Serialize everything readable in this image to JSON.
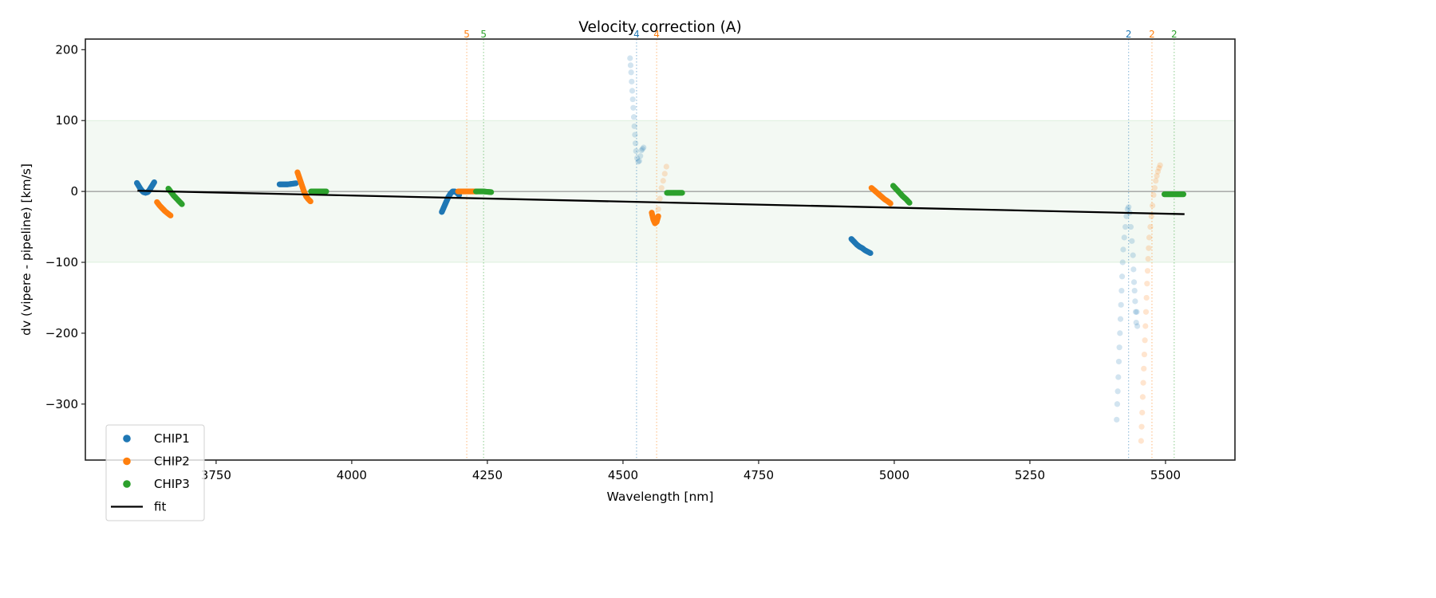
{
  "chart_data": {
    "type": "scatter",
    "title": "Velocity correction (A)",
    "xlabel": "Wavelength [nm]",
    "ylabel": "dv (vipere - pipeline) [km/s]",
    "xlim": [
      3509,
      5628
    ],
    "ylim": [
      -379,
      215
    ],
    "xticks": [
      3750,
      4000,
      4250,
      4500,
      4750,
      5000,
      5250,
      5500
    ],
    "xtick_labels": [
      "3750",
      "4000",
      "4250",
      "4500",
      "4750",
      "5000",
      "5250",
      "5500"
    ],
    "yticks": [
      200,
      100,
      0,
      -100,
      -200,
      -300
    ],
    "ytick_labels": [
      "200",
      "100",
      "0",
      "−100",
      "−200",
      "−300"
    ],
    "grid": false,
    "band": {
      "y_from": -100,
      "y_to": 100,
      "color": "#2ca02c",
      "opacity": 0.06
    },
    "zero_line": {
      "y": 0,
      "color": "#808080"
    },
    "legend": {
      "position": "lower-left",
      "entries": [
        {
          "label": "CHIP1",
          "type": "marker",
          "color": "#1f77b4"
        },
        {
          "label": "CHIP2",
          "type": "marker",
          "color": "#ff7f0e"
        },
        {
          "label": "CHIP3",
          "type": "marker",
          "color": "#2ca02c"
        },
        {
          "label": "fit",
          "type": "line",
          "color": "#000000"
        }
      ]
    },
    "fit": {
      "name": "fit",
      "color": "#000000",
      "x": [
        3605,
        5535
      ],
      "y": [
        1,
        -32
      ]
    },
    "order_markers": [
      {
        "x": 4212,
        "label": "5",
        "color": "#ff7f0e"
      },
      {
        "x": 4243,
        "label": "5",
        "color": "#2ca02c"
      },
      {
        "x": 4525,
        "label": "4",
        "color": "#1f77b4"
      },
      {
        "x": 4562,
        "label": "4",
        "color": "#ff7f0e"
      },
      {
        "x": 5432,
        "label": "2",
        "color": "#1f77b4"
      },
      {
        "x": 5475,
        "label": "2",
        "color": "#ff7f0e"
      },
      {
        "x": 5516,
        "label": "2",
        "color": "#2ca02c"
      }
    ],
    "series": [
      {
        "name": "CHIP1",
        "color": "#1f77b4",
        "segments": [
          {
            "opacity": 1,
            "x": [
              3604,
              3608,
              3612,
              3616,
              3620,
              3624,
              3628,
              3632,
              3636
            ],
            "y": [
              12,
              7,
              2,
              -1,
              -2,
              -1,
              3,
              8,
              13
            ]
          },
          {
            "opacity": 1,
            "x": [
              3867,
              3872,
              3877,
              3882,
              3887,
              3892,
              3897
            ],
            "y": [
              10,
              10,
              10,
              10,
              10.5,
              11,
              11.5
            ]
          },
          {
            "opacity": 1,
            "x": [
              4166,
              4170,
              4174,
              4178,
              4182,
              4186,
              4190,
              4194,
              4198
            ],
            "y": [
              -29,
              -22,
              -15,
              -8,
              -3,
              0,
              0,
              -2,
              -5
            ]
          },
          {
            "opacity": 0.2,
            "x": [
              4513,
              4514,
              4515,
              4516,
              4517,
              4518,
              4519,
              4520,
              4521,
              4522,
              4523,
              4524,
              4526,
              4528,
              4530,
              4532,
              4534,
              4536,
              4538
            ],
            "y": [
              188,
              178,
              168,
              155,
              142,
              130,
              118,
              105,
              92,
              80,
              68,
              57,
              47,
              42,
              43,
              50,
              58,
              60,
              62
            ]
          },
          {
            "opacity": 1,
            "x": [
              4921,
              4926,
              4931,
              4936,
              4941,
              4946,
              4951,
              4956
            ],
            "y": [
              -67,
              -71,
              -75,
              -78,
              -80,
              -83,
              -85,
              -87
            ]
          },
          {
            "opacity": 0.2,
            "x": [
              5410,
              5411,
              5412,
              5413,
              5414,
              5415,
              5416,
              5417,
              5418,
              5419,
              5420,
              5421,
              5422,
              5424,
              5426,
              5428,
              5430,
              5432,
              5434,
              5436,
              5438,
              5440,
              5441,
              5442,
              5443,
              5444,
              5445,
              5446,
              5447,
              5448
            ],
            "y": [
              -322,
              -300,
              -282,
              -262,
              -240,
              -220,
              -200,
              -180,
              -160,
              -140,
              -120,
              -100,
              -82,
              -65,
              -50,
              -35,
              -25,
              -22,
              -30,
              -50,
              -70,
              -90,
              -110,
              -128,
              -140,
              -155,
              -170,
              -185,
              -170,
              -190
            ]
          }
        ]
      },
      {
        "name": "CHIP2",
        "color": "#ff7f0e",
        "segments": [
          {
            "opacity": 1,
            "x": [
              3641,
              3646,
              3651,
              3656,
              3661,
              3666
            ],
            "y": [
              -15,
              -20,
              -24,
              -28,
              -31,
              -34
            ]
          },
          {
            "opacity": 1,
            "x": [
              3900,
              3904,
              3908,
              3912,
              3916,
              3920,
              3924
            ],
            "y": [
              27,
              18,
              9,
              0,
              -7,
              -11,
              -14
            ]
          },
          {
            "opacity": 1,
            "x": [
              4196,
              4203,
              4210,
              4217,
              4224,
              4231
            ],
            "y": [
              0,
              0,
              0,
              0,
              0,
              0
            ]
          },
          {
            "opacity": 1,
            "x": [
              4553,
              4556,
              4559,
              4562,
              4565
            ],
            "y": [
              -30,
              -40,
              -45,
              -43,
              -35
            ]
          },
          {
            "opacity": 0.2,
            "x": [
              4565,
              4568,
              4571,
              4574,
              4577,
              4580
            ],
            "y": [
              -25,
              -10,
              5,
              15,
              25,
              35
            ]
          },
          {
            "opacity": 1,
            "x": [
              4958,
              4964,
              4970,
              4976,
              4982,
              4988,
              4993
            ],
            "y": [
              5,
              1,
              -3,
              -7,
              -11,
              -14,
              -17
            ]
          },
          {
            "opacity": 0.2,
            "x": [
              5455,
              5456,
              5457,
              5458,
              5459,
              5460,
              5461,
              5462,
              5463,
              5464,
              5465,
              5466,
              5467,
              5468,
              5469,
              5470,
              5472,
              5474,
              5476,
              5478,
              5480,
              5482,
              5484,
              5486,
              5488,
              5490
            ],
            "y": [
              -352,
              -332,
              -312,
              -290,
              -270,
              -250,
              -230,
              -210,
              -190,
              -170,
              -150,
              -130,
              -112,
              -95,
              -80,
              -65,
              -50,
              -35,
              -20,
              -5,
              5,
              15,
              22,
              28,
              33,
              37
            ]
          }
        ]
      },
      {
        "name": "CHIP3",
        "color": "#2ca02c",
        "segments": [
          {
            "opacity": 1,
            "x": [
              3662,
              3667,
              3672,
              3677,
              3682,
              3687
            ],
            "y": [
              4,
              -1,
              -6,
              -10,
              -14,
              -18
            ]
          },
          {
            "opacity": 1,
            "x": [
              3925,
              3932,
              3939,
              3946,
              3953
            ],
            "y": [
              0,
              0,
              0,
              0,
              0
            ]
          },
          {
            "opacity": 1,
            "x": [
              4229,
              4236,
              4243,
              4250,
              4257
            ],
            "y": [
              0,
              0,
              0,
              -0.5,
              -1
            ]
          },
          {
            "opacity": 1,
            "x": [
              4581,
              4588,
              4595,
              4602,
              4609
            ],
            "y": [
              -2,
              -2,
              -2,
              -2,
              -2
            ]
          },
          {
            "opacity": 1,
            "x": [
              4998,
              5004,
              5010,
              5016,
              5022,
              5028
            ],
            "y": [
              8,
              3,
              -2,
              -7,
              -11,
              -16
            ]
          },
          {
            "opacity": 1,
            "x": [
              5498,
              5505,
              5512,
              5519,
              5526,
              5533
            ],
            "y": [
              -4,
              -4,
              -4,
              -4,
              -4,
              -4
            ]
          }
        ]
      }
    ]
  }
}
